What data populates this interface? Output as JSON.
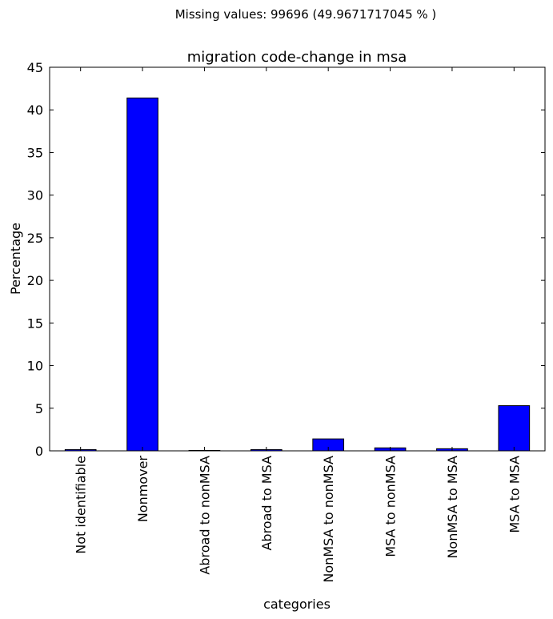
{
  "suptitle": "Missing values: 99696 (49.9671717045 % )",
  "chart_data": {
    "type": "bar",
    "title": "migration code-change in msa",
    "xlabel": "categories",
    "ylabel": "Percentage",
    "ylim": [
      0,
      45
    ],
    "yticks": [
      0,
      5,
      10,
      15,
      20,
      25,
      30,
      35,
      40,
      45
    ],
    "grid": false,
    "categories": [
      "Not identifiable",
      "Nonmover",
      "Abroad to nonMSA",
      "Abroad to MSA",
      "NonMSA to nonMSA",
      "MSA to nonMSA",
      "NonMSA to MSA",
      "MSA to MSA"
    ],
    "values": [
      0.15,
      41.4,
      0.05,
      0.15,
      1.4,
      0.35,
      0.25,
      5.3
    ],
    "bar_color": "#0000ff",
    "edge_color": "#000000"
  }
}
